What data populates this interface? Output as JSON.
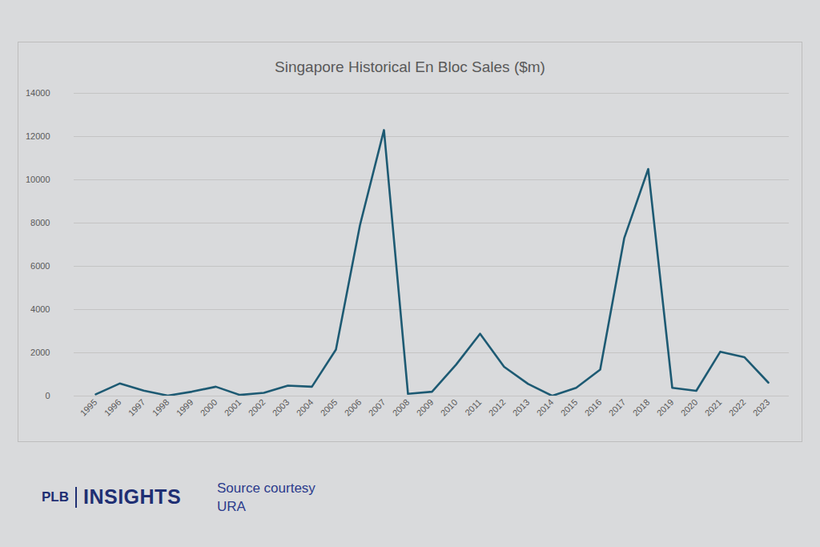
{
  "chart_data": {
    "type": "line",
    "title": "Singapore Historical En Bloc Sales ($m)",
    "categories": [
      "1995",
      "1996",
      "1997",
      "1998",
      "1999",
      "2000",
      "2001",
      "2002",
      "2003",
      "2004",
      "2005",
      "2006",
      "2007",
      "2008",
      "2009",
      "2010",
      "2011",
      "2012",
      "2013",
      "2014",
      "2015",
      "2016",
      "2017",
      "2018",
      "2019",
      "2020",
      "2021",
      "2022",
      "2023"
    ],
    "values": [
      80,
      580,
      250,
      20,
      200,
      430,
      50,
      150,
      480,
      430,
      2150,
      7900,
      12300,
      100,
      200,
      1450,
      2880,
      1350,
      560,
      10,
      380,
      1220,
      7300,
      10500,
      380,
      240,
      2050,
      1800,
      620
    ],
    "color": "#1d5a73",
    "ylim": [
      0,
      14000
    ],
    "yticks": [
      0,
      2000,
      4000,
      6000,
      8000,
      10000,
      12000,
      14000
    ],
    "grid": true,
    "footer": {
      "brand": "PLB",
      "brand_name": "INSIGHTS",
      "source": [
        "Source courtesy",
        "URA"
      ]
    }
  }
}
